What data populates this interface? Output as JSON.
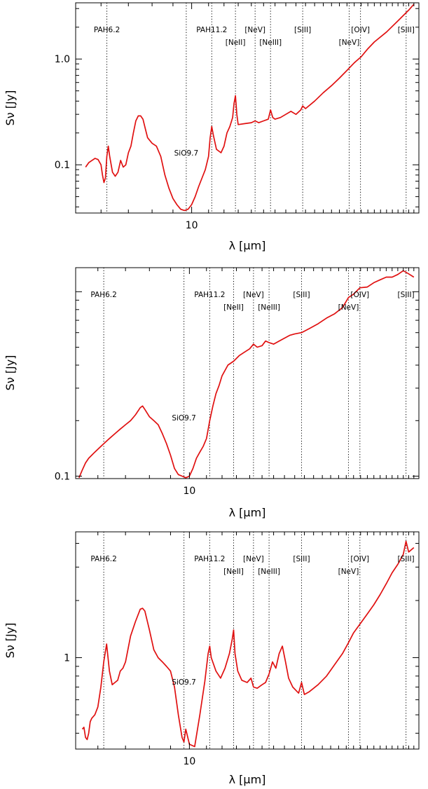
{
  "chart_data": [
    {
      "type": "line",
      "xscale": "log",
      "yscale": "log",
      "xlim": [
        5.2,
        36
      ],
      "ylim": [
        0.035,
        3.4
      ],
      "xlabel": "λ [μm]",
      "ylabel": "Sν [Jy]",
      "xticks": [
        {
          "value": 10,
          "label": "10"
        }
      ],
      "yticks": [
        {
          "value": 0.1,
          "label": "0.1"
        },
        {
          "value": 1.0,
          "label": "1.0"
        }
      ],
      "color": "#e01010",
      "lines": [
        {
          "label": "PAH6.2",
          "x": 6.2,
          "row": 0
        },
        {
          "label": "SiO9.7",
          "x": 9.7,
          "row": 2
        },
        {
          "label": "PAH11.2",
          "x": 11.2,
          "row": 0
        },
        {
          "label": "[NeII]",
          "x": 12.8,
          "row": 1
        },
        {
          "label": "[NeV]",
          "x": 14.3,
          "row": 0
        },
        {
          "label": "[NeIII]",
          "x": 15.6,
          "row": 1
        },
        {
          "label": "[SIII]",
          "x": 18.7,
          "row": 0
        },
        {
          "label": "[NeV]",
          "x": 24.3,
          "row": 1
        },
        {
          "label": "[OIV]",
          "x": 25.9,
          "row": 0
        },
        {
          "label": "[SIII]",
          "x": 33.5,
          "row": 0
        }
      ],
      "series": [
        {
          "x": [
            5.5,
            5.6,
            5.7,
            5.8,
            5.9,
            6.0,
            6.05,
            6.1,
            6.15,
            6.2,
            6.25,
            6.3,
            6.4,
            6.5,
            6.6,
            6.7,
            6.8,
            6.9,
            7.0,
            7.1,
            7.2,
            7.3,
            7.4,
            7.5,
            7.6,
            7.7,
            7.8,
            8.0,
            8.2,
            8.4,
            8.6,
            8.8,
            9.0,
            9.2,
            9.4,
            9.6,
            9.8,
            10.0,
            10.2,
            10.4,
            10.6,
            10.8,
            11.0,
            11.1,
            11.2,
            11.3,
            11.5,
            11.8,
            12.0,
            12.2,
            12.4,
            12.6,
            12.7,
            12.8,
            12.9,
            13.0,
            13.5,
            14.0,
            14.3,
            14.6,
            15.0,
            15.4,
            15.6,
            15.8,
            16.0,
            16.5,
            17.0,
            17.5,
            18.0,
            18.5,
            18.7,
            19.0,
            20.0,
            21.0,
            22.0,
            23.0,
            24.0,
            25.0,
            26.0,
            27.0,
            28.0,
            30.0,
            32.0,
            34.0,
            35.0
          ],
          "y": [
            0.095,
            0.105,
            0.11,
            0.115,
            0.112,
            0.1,
            0.08,
            0.068,
            0.075,
            0.12,
            0.15,
            0.12,
            0.085,
            0.078,
            0.085,
            0.11,
            0.095,
            0.1,
            0.13,
            0.15,
            0.2,
            0.26,
            0.29,
            0.29,
            0.27,
            0.22,
            0.18,
            0.16,
            0.15,
            0.12,
            0.08,
            0.06,
            0.048,
            0.042,
            0.038,
            0.037,
            0.038,
            0.042,
            0.05,
            0.062,
            0.075,
            0.09,
            0.12,
            0.18,
            0.23,
            0.19,
            0.14,
            0.13,
            0.15,
            0.2,
            0.23,
            0.28,
            0.38,
            0.45,
            0.3,
            0.24,
            0.245,
            0.25,
            0.26,
            0.25,
            0.26,
            0.27,
            0.33,
            0.28,
            0.27,
            0.28,
            0.3,
            0.32,
            0.3,
            0.33,
            0.36,
            0.34,
            0.4,
            0.48,
            0.56,
            0.66,
            0.78,
            0.92,
            1.05,
            1.25,
            1.45,
            1.8,
            2.3,
            2.9,
            3.3
          ]
        }
      ]
    },
    {
      "type": "line",
      "xscale": "log",
      "yscale": "log",
      "xlim": [
        5.3,
        36
      ],
      "ylim": [
        0.097,
        1.35
      ],
      "xlabel": "λ [μm]",
      "ylabel": "Sν [Jy]",
      "xticks": [
        {
          "value": 10,
          "label": "10"
        }
      ],
      "yticks": [
        {
          "value": 0.1,
          "label": "0.1"
        }
      ],
      "color": "#e01010",
      "lines": [
        {
          "label": "PAH6.2",
          "x": 6.2,
          "row": 0
        },
        {
          "label": "SiO9.7",
          "x": 9.7,
          "row": 2
        },
        {
          "label": "PAH11.2",
          "x": 11.2,
          "row": 0
        },
        {
          "label": "[NeII]",
          "x": 12.8,
          "row": 1
        },
        {
          "label": "[NeV]",
          "x": 14.3,
          "row": 0
        },
        {
          "label": "[NeIII]",
          "x": 15.6,
          "row": 1
        },
        {
          "label": "[SIII]",
          "x": 18.7,
          "row": 0
        },
        {
          "label": "[NeV]",
          "x": 24.3,
          "row": 1
        },
        {
          "label": "[OIV]",
          "x": 25.9,
          "row": 0
        },
        {
          "label": "[SIII]",
          "x": 33.5,
          "row": 0
        }
      ],
      "series": [
        {
          "x": [
            5.4,
            5.5,
            5.6,
            5.7,
            5.8,
            5.9,
            6.0,
            6.2,
            6.4,
            6.6,
            6.8,
            7.0,
            7.2,
            7.4,
            7.6,
            7.7,
            7.8,
            8.0,
            8.2,
            8.4,
            8.6,
            8.8,
            9.0,
            9.2,
            9.4,
            9.6,
            9.8,
            10.0,
            10.2,
            10.4,
            10.6,
            10.8,
            11.0,
            11.2,
            11.4,
            11.6,
            11.8,
            12.0,
            12.4,
            12.8,
            13.2,
            13.6,
            14.0,
            14.3,
            14.6,
            15.0,
            15.3,
            15.6,
            16.0,
            16.5,
            17.0,
            17.5,
            18.0,
            18.7,
            19.5,
            20.5,
            21.5,
            22.5,
            23.5,
            24.3,
            25.0,
            25.9,
            27.0,
            28.0,
            29.0,
            30.0,
            31.0,
            32.0,
            33.0,
            34.0,
            35.0
          ],
          "y": [
            0.098,
            0.108,
            0.118,
            0.125,
            0.13,
            0.135,
            0.14,
            0.15,
            0.16,
            0.17,
            0.18,
            0.19,
            0.2,
            0.215,
            0.235,
            0.24,
            0.23,
            0.21,
            0.2,
            0.19,
            0.17,
            0.15,
            0.13,
            0.11,
            0.102,
            0.1,
            0.098,
            0.1,
            0.11,
            0.125,
            0.135,
            0.145,
            0.16,
            0.2,
            0.24,
            0.28,
            0.31,
            0.35,
            0.4,
            0.42,
            0.45,
            0.47,
            0.49,
            0.52,
            0.5,
            0.51,
            0.54,
            0.53,
            0.52,
            0.54,
            0.56,
            0.58,
            0.59,
            0.6,
            0.63,
            0.67,
            0.72,
            0.76,
            0.82,
            0.93,
            0.97,
            1.05,
            1.06,
            1.12,
            1.16,
            1.2,
            1.2,
            1.24,
            1.3,
            1.25,
            1.2
          ]
        }
      ]
    },
    {
      "type": "line",
      "xscale": "log",
      "yscale": "log",
      "xlim": [
        5.3,
        36
      ],
      "ylim": [
        0.33,
        4.6
      ],
      "xlabel": "λ [μm]",
      "ylabel": "Sν [Jy]",
      "xticks": [
        {
          "value": 10,
          "label": "10"
        }
      ],
      "yticks": [
        {
          "value": 1,
          "label": "1"
        }
      ],
      "color": "#e01010",
      "lines": [
        {
          "label": "PAH6.2",
          "x": 6.2,
          "row": 0
        },
        {
          "label": "SiO9.7",
          "x": 9.7,
          "row": 2
        },
        {
          "label": "PAH11.2",
          "x": 11.2,
          "row": 0
        },
        {
          "label": "[NeII]",
          "x": 12.8,
          "row": 1
        },
        {
          "label": "[NeV]",
          "x": 14.3,
          "row": 0
        },
        {
          "label": "[NeIII]",
          "x": 15.6,
          "row": 1
        },
        {
          "label": "[SIII]",
          "x": 18.7,
          "row": 0
        },
        {
          "label": "[NeV]",
          "x": 24.3,
          "row": 1
        },
        {
          "label": "[OIV]",
          "x": 25.9,
          "row": 0
        },
        {
          "label": "[SIII]",
          "x": 33.5,
          "row": 0
        }
      ],
      "series": [
        {
          "x": [
            5.5,
            5.55,
            5.6,
            5.65,
            5.7,
            5.75,
            5.8,
            5.9,
            6.0,
            6.1,
            6.2,
            6.3,
            6.4,
            6.5,
            6.6,
            6.7,
            6.8,
            6.9,
            7.0,
            7.2,
            7.4,
            7.6,
            7.7,
            7.8,
            8.0,
            8.2,
            8.4,
            8.6,
            8.8,
            9.0,
            9.2,
            9.4,
            9.6,
            9.7,
            9.8,
            10.0,
            10.3,
            10.6,
            10.9,
            11.1,
            11.2,
            11.3,
            11.6,
            11.9,
            12.2,
            12.5,
            12.7,
            12.8,
            12.9,
            13.1,
            13.4,
            13.8,
            14.1,
            14.3,
            14.6,
            15.0,
            15.3,
            15.6,
            15.9,
            16.2,
            16.5,
            16.8,
            17.1,
            17.4,
            17.8,
            18.4,
            18.7,
            19.0,
            19.5,
            20.5,
            21.5,
            22.5,
            23.5,
            24.3,
            25.0,
            25.9,
            27.0,
            28.0,
            29.0,
            30.0,
            31.0,
            32.0,
            33.0,
            33.5,
            34.0,
            35.0
          ],
          "y": [
            0.42,
            0.43,
            0.38,
            0.37,
            0.4,
            0.46,
            0.48,
            0.5,
            0.55,
            0.7,
            0.95,
            1.18,
            0.85,
            0.72,
            0.74,
            0.76,
            0.85,
            0.88,
            0.95,
            1.3,
            1.55,
            1.8,
            1.82,
            1.76,
            1.4,
            1.1,
            1.0,
            0.95,
            0.9,
            0.85,
            0.7,
            0.5,
            0.38,
            0.36,
            0.42,
            0.35,
            0.34,
            0.5,
            0.75,
            1.05,
            1.15,
            1.0,
            0.85,
            0.78,
            0.88,
            1.05,
            1.25,
            1.4,
            1.05,
            0.85,
            0.76,
            0.74,
            0.78,
            0.7,
            0.69,
            0.72,
            0.74,
            0.82,
            0.95,
            0.88,
            1.05,
            1.15,
            0.95,
            0.78,
            0.7,
            0.65,
            0.74,
            0.64,
            0.66,
            0.72,
            0.8,
            0.92,
            1.05,
            1.2,
            1.35,
            1.5,
            1.7,
            1.9,
            2.15,
            2.45,
            2.8,
            3.1,
            3.5,
            4.1,
            3.6,
            3.8
          ]
        }
      ]
    }
  ]
}
